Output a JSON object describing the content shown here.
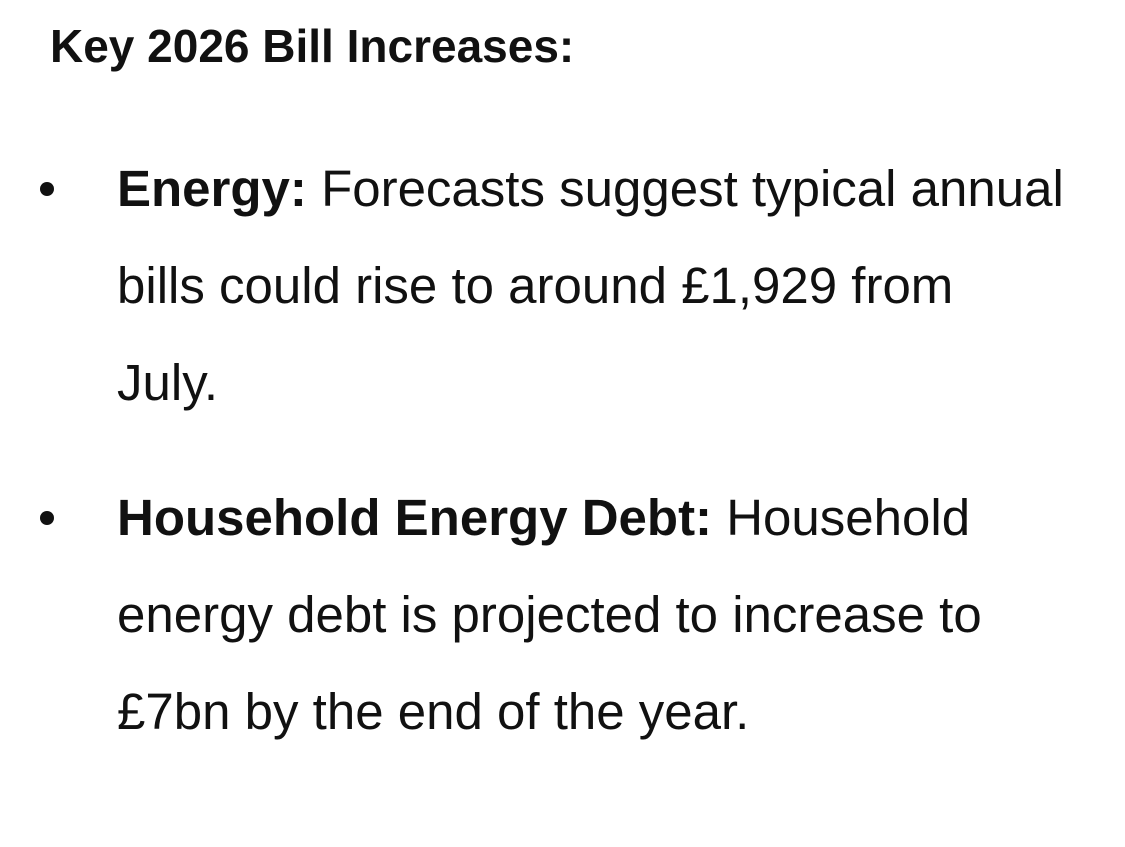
{
  "heading": "Key 2026 Bill Increases:",
  "items": [
    {
      "label": "Energy:",
      "text": "Forecasts suggest typical annual bills could rise to around £1,929 from July."
    },
    {
      "label": "Household Energy Debt:",
      "text": "Household energy debt is projected to increase to £7bn by the end of the year."
    }
  ]
}
